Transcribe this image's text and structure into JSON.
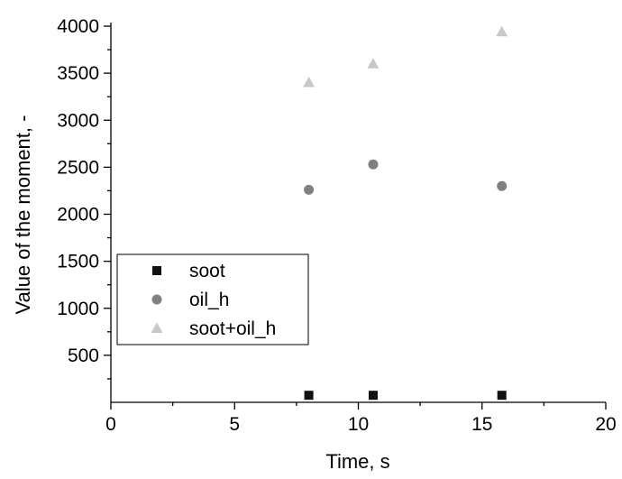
{
  "chart_data": {
    "type": "scatter",
    "title": "",
    "xlabel": "Time, s",
    "ylabel": "Value of the moment, -",
    "xlim": [
      0,
      20
    ],
    "ylim": [
      0,
      4000
    ],
    "xticks": [
      0,
      5,
      10,
      15,
      20
    ],
    "yticks": [
      500,
      1000,
      1500,
      2000,
      2500,
      3000,
      3500,
      4000
    ],
    "grid": false,
    "legend_position": "bottom-left",
    "series": [
      {
        "name": "soot",
        "marker": "square",
        "color": "#111111",
        "points": [
          {
            "x": 8.0,
            "y": 75
          },
          {
            "x": 10.6,
            "y": 75
          },
          {
            "x": 15.8,
            "y": 75
          }
        ]
      },
      {
        "name": "oil_h",
        "marker": "circle",
        "color": "#808080",
        "points": [
          {
            "x": 8.0,
            "y": 2260
          },
          {
            "x": 10.6,
            "y": 2530
          },
          {
            "x": 15.8,
            "y": 2300
          }
        ]
      },
      {
        "name": "soot+oil_h",
        "marker": "triangle",
        "color": "#c8c8c8",
        "points": [
          {
            "x": 8.0,
            "y": 3400
          },
          {
            "x": 10.6,
            "y": 3600
          },
          {
            "x": 15.8,
            "y": 3940
          }
        ]
      }
    ]
  }
}
